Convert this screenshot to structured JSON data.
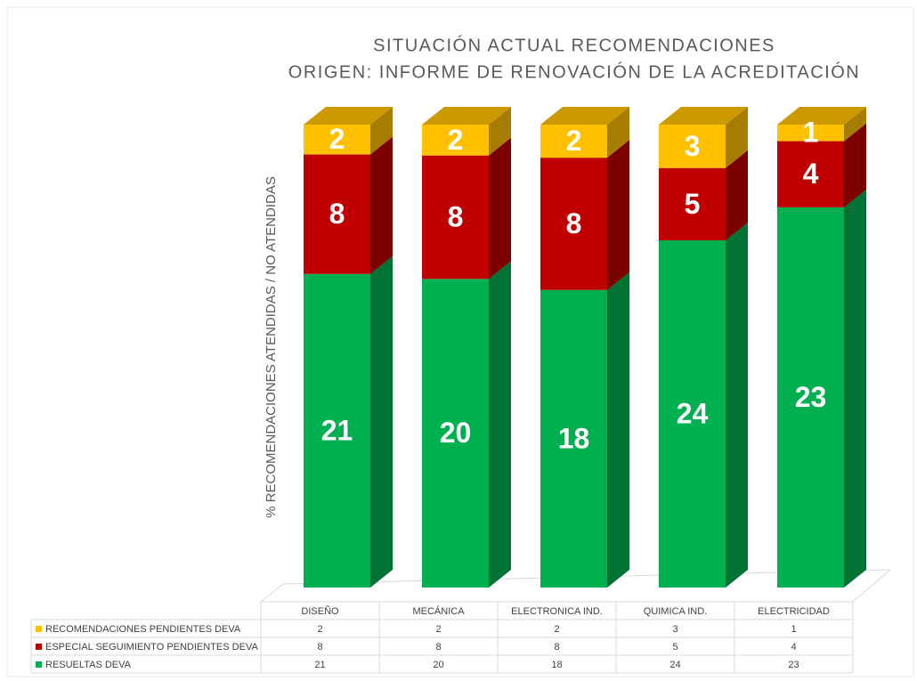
{
  "chart_data": {
    "type": "bar",
    "stacking": "percent",
    "title": [
      "SITUACIÓN ACTUAL RECOMENDACIONES",
      "ORIGEN: INFORME DE RENOVACIÓN DE LA ACREDITACIÓN"
    ],
    "ylabel": "% RECOMENDACIONES ATENDIDAS / NO ATENDIDAS",
    "categories": [
      "DISEÑO",
      "MECÁNICA",
      "ELECTRONICA IND.",
      "QUIMICA IND.",
      "ELECTRICIDAD"
    ],
    "series": [
      {
        "name": "RECOMENDACIONES PENDIENTES DEVA",
        "color": "#ffc000",
        "values": [
          2,
          2,
          2,
          3,
          1
        ]
      },
      {
        "name": "ESPECIAL SEGUIMIENTO PENDIENTES DEVA",
        "color": "#c00000",
        "values": [
          8,
          8,
          8,
          5,
          4
        ]
      },
      {
        "name": "RESUELTAS DEVA",
        "color": "#00b050",
        "values": [
          21,
          20,
          18,
          24,
          23
        ]
      }
    ]
  }
}
